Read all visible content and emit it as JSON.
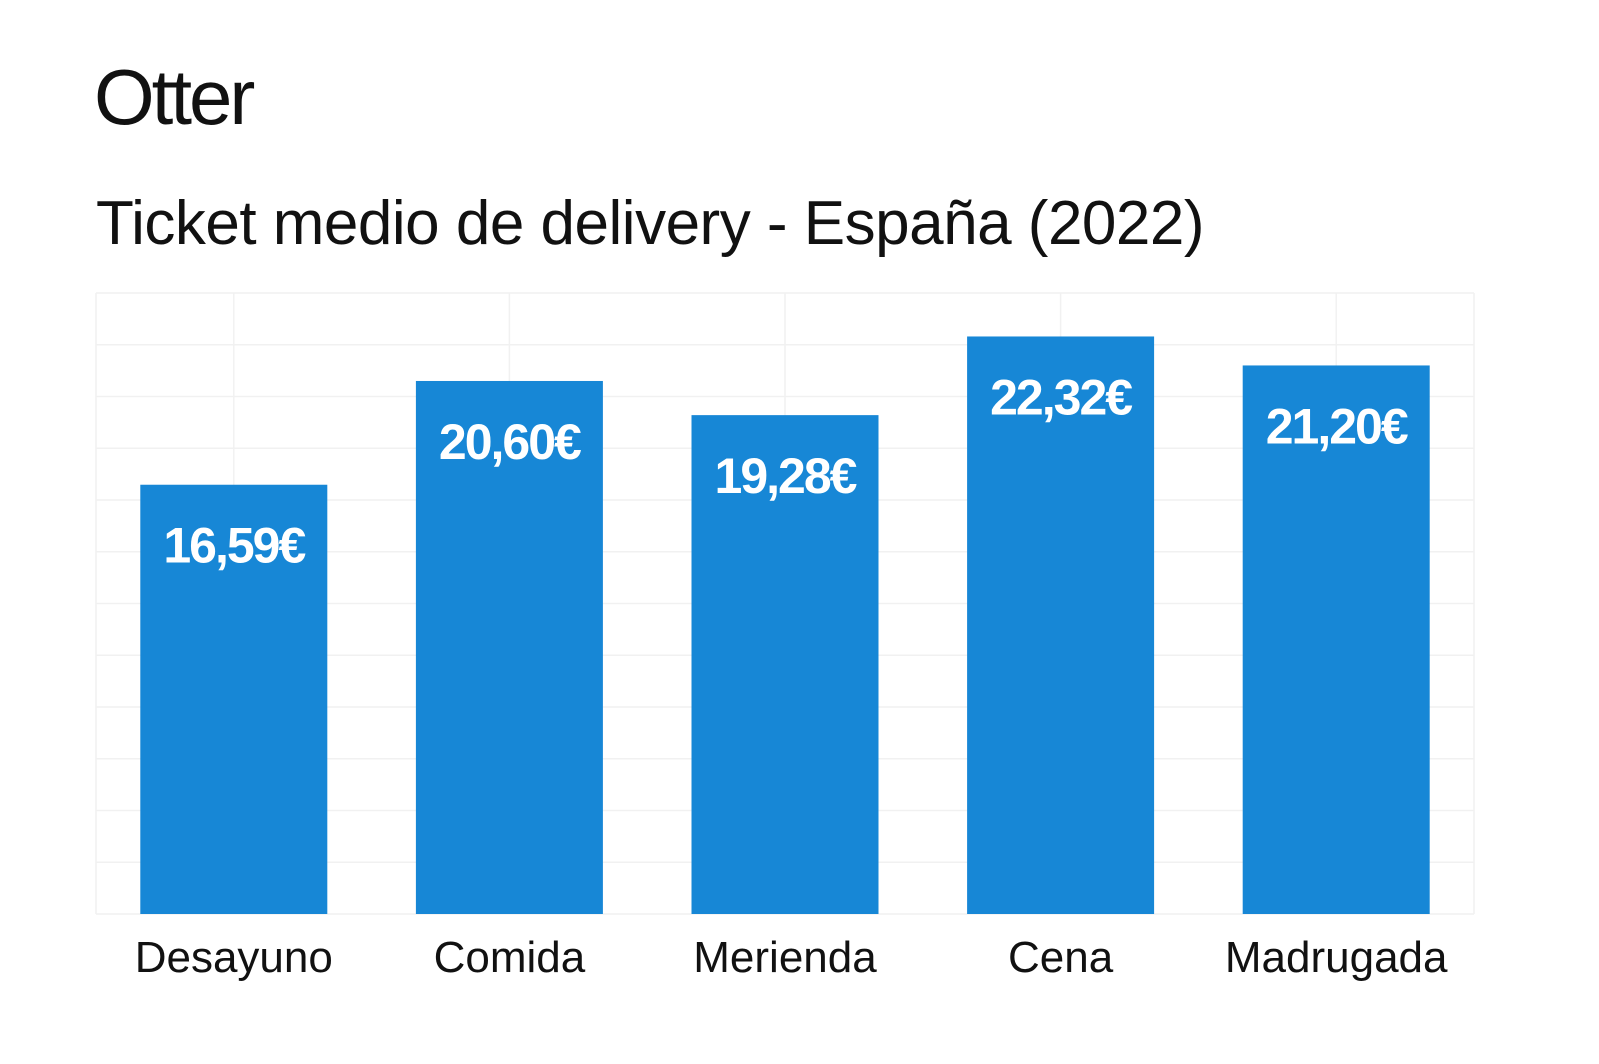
{
  "logo": "Otter",
  "chart_data": {
    "type": "bar",
    "title": "Ticket medio de delivery - España (2022)",
    "categories": [
      "Desayuno",
      "Comida",
      "Merienda",
      "Cena",
      "Madrugada"
    ],
    "values": [
      16.59,
      20.6,
      19.28,
      22.32,
      21.2
    ],
    "data_labels": [
      "16,59€",
      "20,60€",
      "19,28€",
      "22,32€",
      "21,20€"
    ],
    "xlabel": "",
    "ylabel": "",
    "ylim": [
      0,
      24
    ],
    "grid": true,
    "grid_step": 2,
    "bar_color": "#1787d6",
    "label_color": "#ffffff"
  }
}
